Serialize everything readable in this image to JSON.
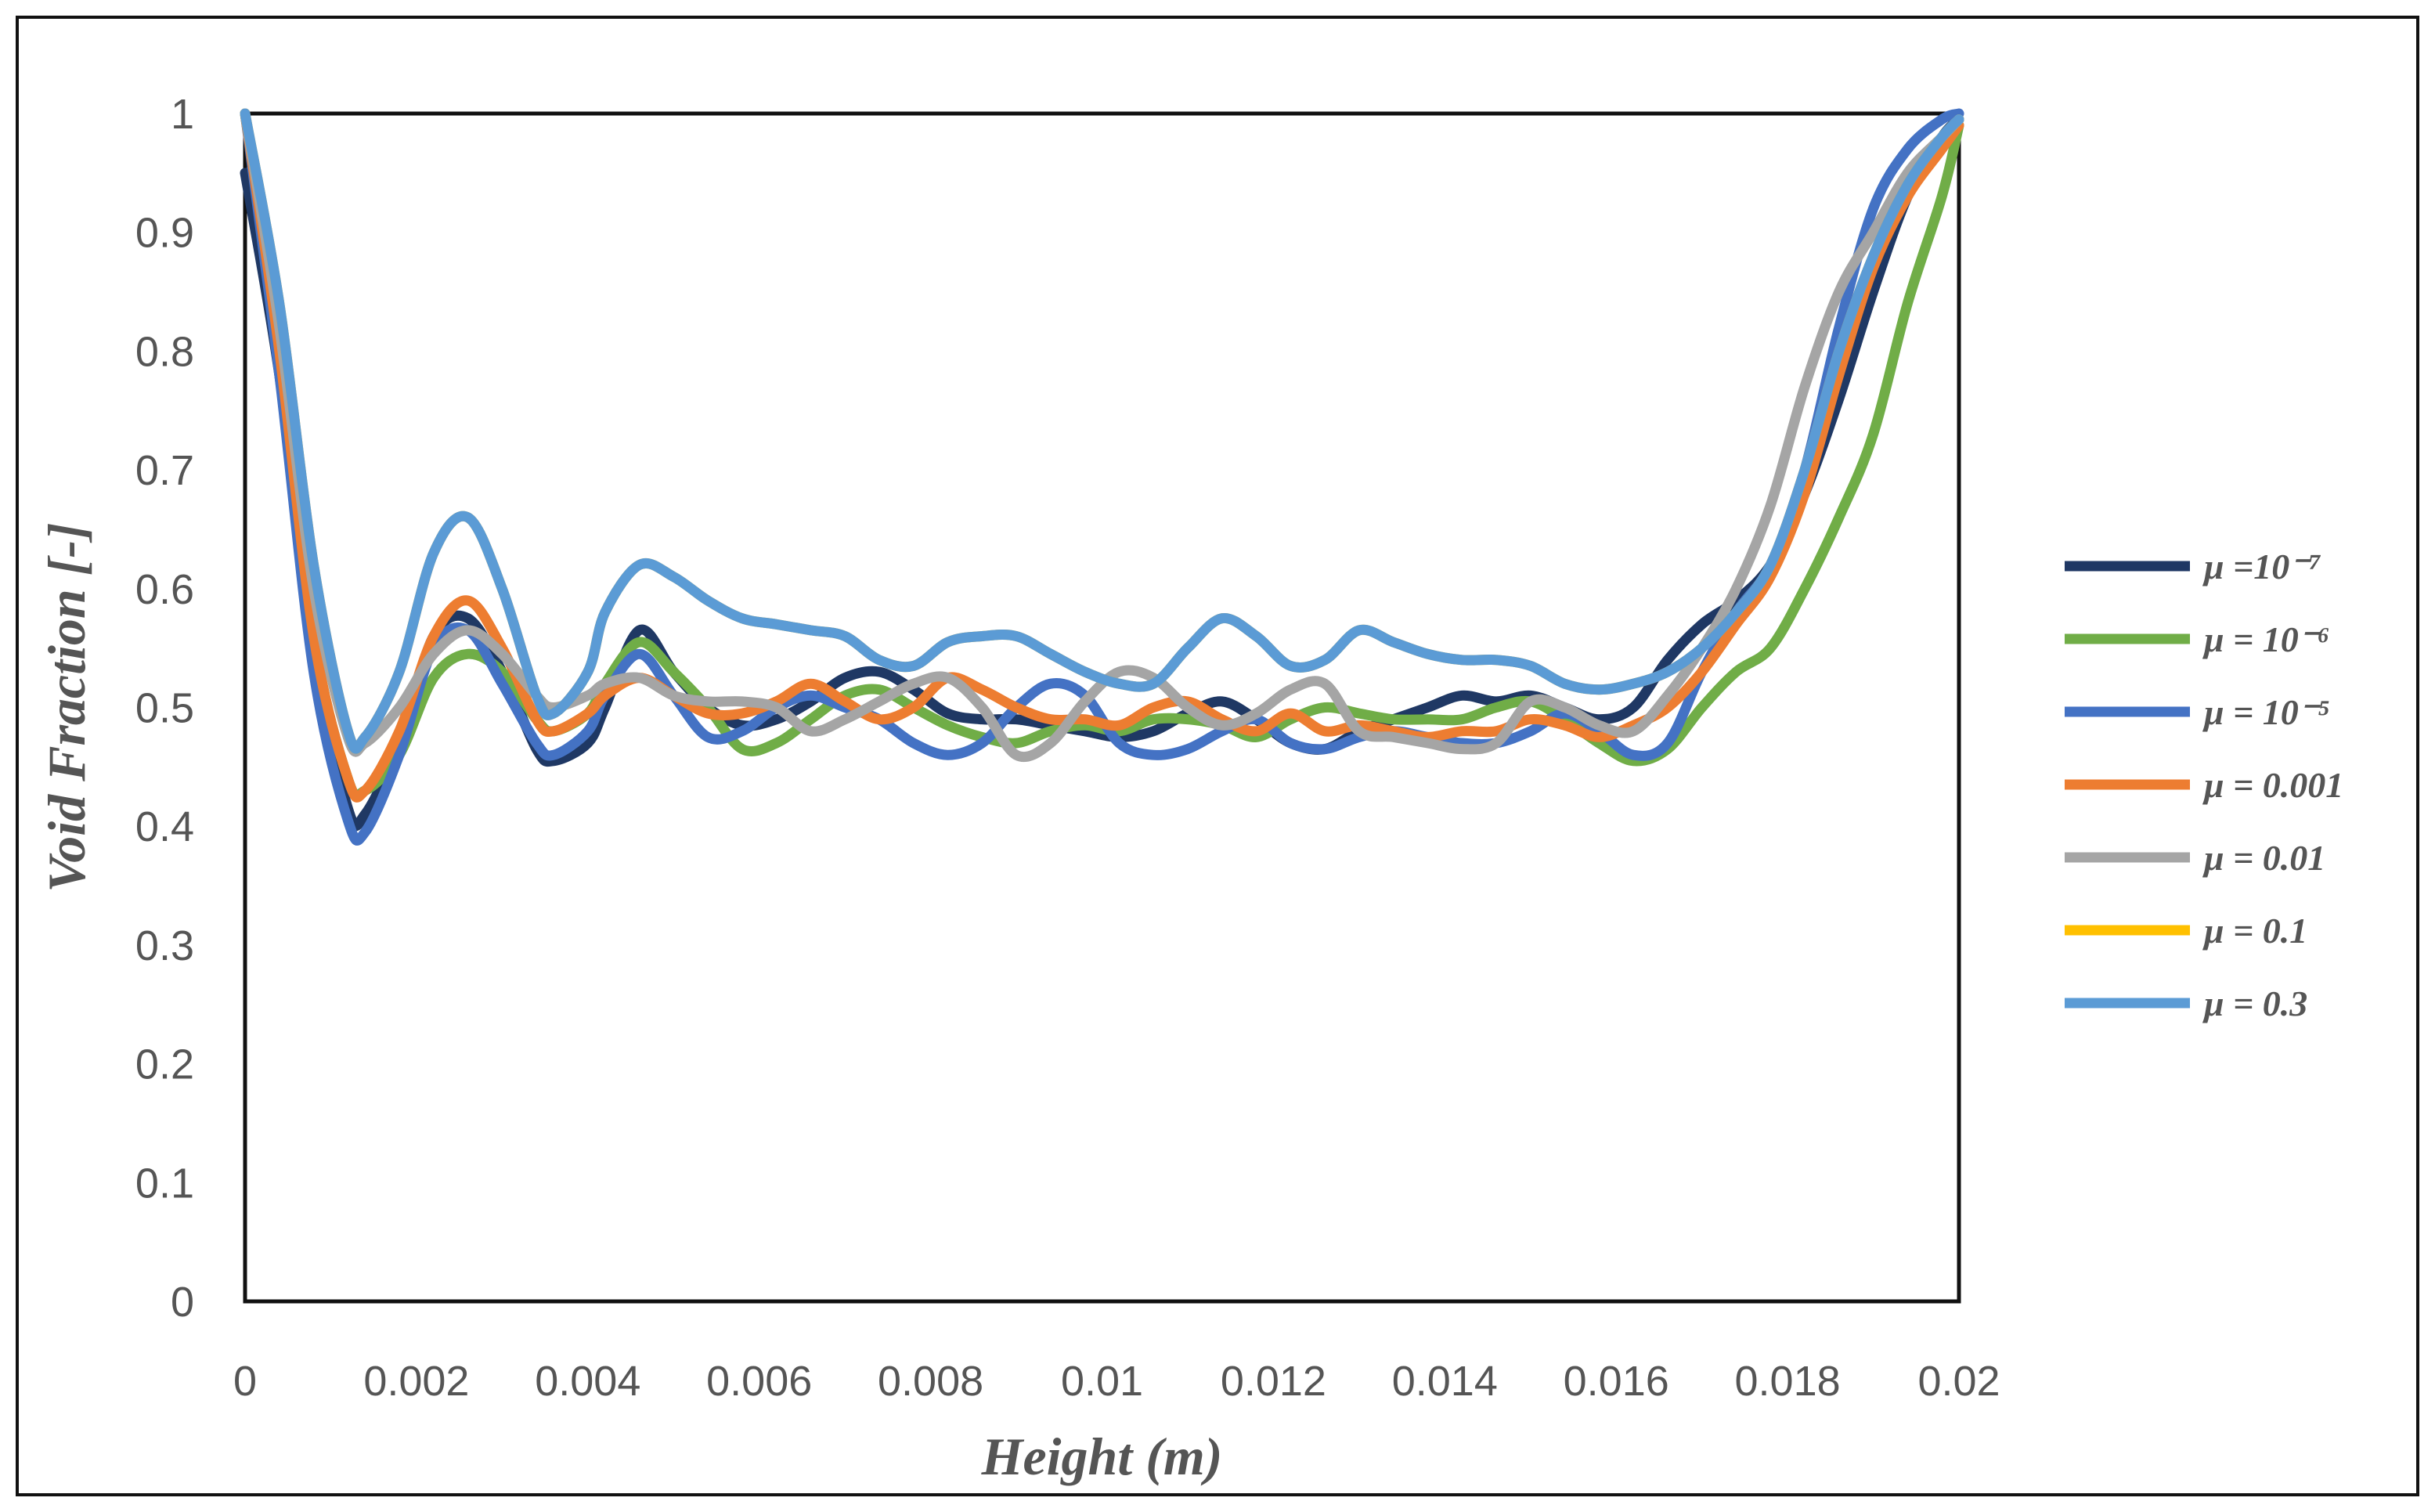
{
  "chart_data": {
    "type": "line",
    "xlabel": "Height (m)",
    "ylabel": "Void Fraction [-]",
    "xlim": [
      0,
      0.02
    ],
    "ylim": [
      0,
      1
    ],
    "x_ticks": [
      "0",
      "0.002",
      "0.004",
      "0.006",
      "0.008",
      "0.01",
      "0.012",
      "0.014",
      "0.016",
      "0.018",
      "0.02"
    ],
    "y_ticks": [
      "0",
      "0.1",
      "0.2",
      "0.3",
      "0.4",
      "0.5",
      "0.6",
      "0.7",
      "0.8",
      "0.9",
      "1"
    ],
    "legend_position": "right",
    "grid": false,
    "series": [
      {
        "name": "μ =10⁻⁷",
        "color": "#1f3864",
        "x": [
          0,
          0.0004,
          0.0008,
          0.0012,
          0.0014,
          0.0018,
          0.0022,
          0.0026,
          0.003,
          0.0034,
          0.0036,
          0.004,
          0.0042,
          0.0046,
          0.005,
          0.0054,
          0.0058,
          0.0062,
          0.0066,
          0.007,
          0.0074,
          0.0078,
          0.0082,
          0.0086,
          0.009,
          0.0094,
          0.0098,
          0.0102,
          0.0106,
          0.011,
          0.0114,
          0.0118,
          0.0122,
          0.0126,
          0.013,
          0.0134,
          0.0138,
          0.0142,
          0.0146,
          0.015,
          0.0154,
          0.0158,
          0.0162,
          0.0166,
          0.017,
          0.0174,
          0.0178,
          0.0182,
          0.0186,
          0.019,
          0.0194,
          0.0198,
          0.02
        ],
        "y": [
          0.95,
          0.78,
          0.55,
          0.415,
          0.41,
          0.47,
          0.56,
          0.575,
          0.53,
          0.465,
          0.455,
          0.47,
          0.5,
          0.565,
          0.53,
          0.5,
          0.485,
          0.49,
          0.505,
          0.525,
          0.53,
          0.515,
          0.495,
          0.49,
          0.49,
          0.485,
          0.48,
          0.475,
          0.48,
          0.495,
          0.505,
          0.49,
          0.47,
          0.465,
          0.48,
          0.49,
          0.5,
          0.51,
          0.505,
          0.51,
          0.5,
          0.49,
          0.5,
          0.54,
          0.57,
          0.59,
          0.62,
          0.68,
          0.76,
          0.85,
          0.93,
          0.98,
          0.995
        ]
      },
      {
        "name": "μ = 10⁻⁶",
        "color": "#70ad47",
        "x": [
          0,
          0.0004,
          0.0008,
          0.0012,
          0.0014,
          0.0018,
          0.0022,
          0.0026,
          0.003,
          0.0034,
          0.0036,
          0.004,
          0.0042,
          0.0046,
          0.005,
          0.0054,
          0.0058,
          0.0062,
          0.0066,
          0.007,
          0.0074,
          0.0078,
          0.0082,
          0.0086,
          0.009,
          0.0094,
          0.0098,
          0.0102,
          0.0106,
          0.011,
          0.0114,
          0.0118,
          0.0122,
          0.0126,
          0.013,
          0.0134,
          0.0138,
          0.0142,
          0.0146,
          0.015,
          0.0154,
          0.0158,
          0.0162,
          0.0166,
          0.017,
          0.0174,
          0.0178,
          0.0182,
          0.0186,
          0.019,
          0.0194,
          0.0198,
          0.02
        ],
        "y": [
          1.0,
          0.8,
          0.56,
          0.44,
          0.43,
          0.46,
          0.525,
          0.545,
          0.53,
          0.49,
          0.48,
          0.495,
          0.52,
          0.555,
          0.53,
          0.5,
          0.465,
          0.47,
          0.49,
          0.51,
          0.515,
          0.5,
          0.485,
          0.475,
          0.47,
          0.48,
          0.485,
          0.48,
          0.49,
          0.49,
          0.485,
          0.475,
          0.49,
          0.5,
          0.495,
          0.49,
          0.49,
          0.49,
          0.5,
          0.505,
          0.49,
          0.47,
          0.455,
          0.465,
          0.5,
          0.53,
          0.55,
          0.6,
          0.66,
          0.73,
          0.84,
          0.93,
          0.99
        ]
      },
      {
        "name": "μ = 10⁻⁵",
        "color": "#4472c4",
        "x": [
          0,
          0.0004,
          0.0008,
          0.0012,
          0.0014,
          0.0018,
          0.0022,
          0.0026,
          0.003,
          0.0034,
          0.0036,
          0.004,
          0.0042,
          0.0046,
          0.005,
          0.0054,
          0.0058,
          0.0062,
          0.0066,
          0.007,
          0.0074,
          0.0078,
          0.0082,
          0.0086,
          0.009,
          0.0094,
          0.0098,
          0.0102,
          0.0106,
          0.011,
          0.0114,
          0.0118,
          0.0122,
          0.0126,
          0.013,
          0.0134,
          0.0138,
          0.0142,
          0.0146,
          0.015,
          0.0154,
          0.0158,
          0.0162,
          0.0166,
          0.017,
          0.0174,
          0.0178,
          0.0182,
          0.0186,
          0.019,
          0.0194,
          0.0198,
          0.02
        ],
        "y": [
          1.0,
          0.78,
          0.53,
          0.405,
          0.395,
          0.46,
          0.55,
          0.565,
          0.52,
          0.47,
          0.46,
          0.48,
          0.51,
          0.545,
          0.51,
          0.475,
          0.48,
          0.5,
          0.51,
          0.5,
          0.49,
          0.47,
          0.46,
          0.47,
          0.5,
          0.52,
          0.51,
          0.47,
          0.46,
          0.465,
          0.48,
          0.49,
          0.47,
          0.465,
          0.475,
          0.48,
          0.475,
          0.47,
          0.47,
          0.48,
          0.495,
          0.48,
          0.46,
          0.47,
          0.53,
          0.58,
          0.62,
          0.7,
          0.82,
          0.92,
          0.97,
          0.995,
          1.0
        ]
      },
      {
        "name": "μ = 0.001",
        "color": "#ed7d31",
        "x": [
          0,
          0.0004,
          0.0008,
          0.0012,
          0.0014,
          0.0018,
          0.0022,
          0.0026,
          0.003,
          0.0034,
          0.0036,
          0.004,
          0.0042,
          0.0046,
          0.005,
          0.0054,
          0.0058,
          0.0062,
          0.0066,
          0.007,
          0.0074,
          0.0078,
          0.0082,
          0.0086,
          0.009,
          0.0094,
          0.0098,
          0.0102,
          0.0106,
          0.011,
          0.0114,
          0.0118,
          0.0122,
          0.0126,
          0.013,
          0.0134,
          0.0138,
          0.0142,
          0.0146,
          0.015,
          0.0154,
          0.0158,
          0.0162,
          0.0166,
          0.017,
          0.0174,
          0.0178,
          0.0182,
          0.0186,
          0.019,
          0.0194,
          0.0198,
          0.02
        ],
        "y": [
          1.0,
          0.8,
          0.56,
          0.44,
          0.43,
          0.48,
          0.56,
          0.59,
          0.55,
          0.49,
          0.48,
          0.495,
          0.51,
          0.525,
          0.51,
          0.495,
          0.495,
          0.505,
          0.52,
          0.505,
          0.49,
          0.5,
          0.525,
          0.515,
          0.5,
          0.49,
          0.49,
          0.485,
          0.5,
          0.505,
          0.49,
          0.48,
          0.495,
          0.48,
          0.485,
          0.48,
          0.475,
          0.48,
          0.48,
          0.49,
          0.485,
          0.475,
          0.485,
          0.5,
          0.53,
          0.57,
          0.61,
          0.68,
          0.78,
          0.87,
          0.93,
          0.97,
          0.99
        ]
      },
      {
        "name": "μ = 0.01",
        "color": "#a5a5a5",
        "x": [
          0,
          0.0004,
          0.0008,
          0.0012,
          0.0014,
          0.0018,
          0.0022,
          0.0026,
          0.003,
          0.0034,
          0.0036,
          0.004,
          0.0042,
          0.0046,
          0.005,
          0.0054,
          0.0058,
          0.0062,
          0.0066,
          0.007,
          0.0074,
          0.0078,
          0.0082,
          0.0086,
          0.009,
          0.0094,
          0.0098,
          0.0102,
          0.0106,
          0.011,
          0.0114,
          0.0118,
          0.0122,
          0.0126,
          0.013,
          0.0134,
          0.0138,
          0.0142,
          0.0146,
          0.015,
          0.0154,
          0.0158,
          0.0162,
          0.0166,
          0.017,
          0.0174,
          0.0178,
          0.0182,
          0.0186,
          0.019,
          0.0194,
          0.0198,
          0.02
        ],
        "y": [
          1.0,
          0.82,
          0.6,
          0.475,
          0.47,
          0.5,
          0.545,
          0.565,
          0.545,
          0.51,
          0.5,
          0.51,
          0.52,
          0.525,
          0.51,
          0.505,
          0.505,
          0.5,
          0.48,
          0.49,
          0.505,
          0.52,
          0.525,
          0.5,
          0.46,
          0.47,
          0.505,
          0.53,
          0.525,
          0.5,
          0.485,
          0.495,
          0.515,
          0.52,
          0.48,
          0.475,
          0.47,
          0.465,
          0.47,
          0.505,
          0.5,
          0.485,
          0.48,
          0.51,
          0.55,
          0.6,
          0.67,
          0.77,
          0.85,
          0.9,
          0.95,
          0.98,
          0.995
        ]
      },
      {
        "name": "μ = 0.1",
        "color": "#ffc000",
        "x": [
          0,
          0.0004,
          0.0008,
          0.0012,
          0.0014,
          0.0018,
          0.0022,
          0.0026,
          0.003,
          0.0034,
          0.0036,
          0.004,
          0.0042,
          0.0046,
          0.005,
          0.0054,
          0.0058,
          0.0062,
          0.0066,
          0.007,
          0.0074,
          0.0078,
          0.0082,
          0.0086,
          0.009,
          0.0094,
          0.0098,
          0.0102,
          0.0106,
          0.011,
          0.0114,
          0.0118,
          0.0122,
          0.0126,
          0.013,
          0.0134,
          0.0138,
          0.0142,
          0.0146,
          0.015,
          0.0154,
          0.0158,
          0.0162,
          0.0166,
          0.017,
          0.0174,
          0.0178,
          0.0182,
          0.0186,
          0.019,
          0.0194,
          0.0198,
          0.02
        ],
        "y": [
          1.0,
          0.84,
          0.62,
          0.48,
          0.475,
          0.53,
          0.63,
          0.66,
          0.6,
          0.51,
          0.495,
          0.53,
          0.58,
          0.62,
          0.61,
          0.59,
          0.575,
          0.57,
          0.565,
          0.56,
          0.54,
          0.535,
          0.555,
          0.56,
          0.56,
          0.545,
          0.53,
          0.52,
          0.52,
          0.55,
          0.575,
          0.56,
          0.535,
          0.54,
          0.565,
          0.555,
          0.545,
          0.54,
          0.54,
          0.535,
          0.52,
          0.515,
          0.52,
          0.53,
          0.55,
          0.58,
          0.62,
          0.7,
          0.8,
          0.88,
          0.94,
          0.98,
          0.995
        ]
      },
      {
        "name": "μ = 0.3",
        "color": "#5b9bd5",
        "x": [
          0,
          0.0004,
          0.0008,
          0.0012,
          0.0014,
          0.0018,
          0.0022,
          0.0026,
          0.003,
          0.0034,
          0.0036,
          0.004,
          0.0042,
          0.0046,
          0.005,
          0.0054,
          0.0058,
          0.0062,
          0.0066,
          0.007,
          0.0074,
          0.0078,
          0.0082,
          0.0086,
          0.009,
          0.0094,
          0.0098,
          0.0102,
          0.0106,
          0.011,
          0.0114,
          0.0118,
          0.0122,
          0.0126,
          0.013,
          0.0134,
          0.0138,
          0.0142,
          0.0146,
          0.015,
          0.0154,
          0.0158,
          0.0162,
          0.0166,
          0.017,
          0.0174,
          0.0178,
          0.0182,
          0.0186,
          0.019,
          0.0194,
          0.0198,
          0.02
        ],
        "y": [
          1.0,
          0.84,
          0.62,
          0.48,
          0.475,
          0.53,
          0.63,
          0.66,
          0.6,
          0.51,
          0.495,
          0.53,
          0.58,
          0.62,
          0.61,
          0.59,
          0.575,
          0.57,
          0.565,
          0.56,
          0.54,
          0.535,
          0.555,
          0.56,
          0.56,
          0.545,
          0.53,
          0.52,
          0.52,
          0.55,
          0.575,
          0.56,
          0.535,
          0.54,
          0.565,
          0.555,
          0.545,
          0.54,
          0.54,
          0.535,
          0.52,
          0.515,
          0.52,
          0.53,
          0.55,
          0.58,
          0.62,
          0.7,
          0.8,
          0.88,
          0.94,
          0.98,
          0.995
        ]
      }
    ]
  }
}
